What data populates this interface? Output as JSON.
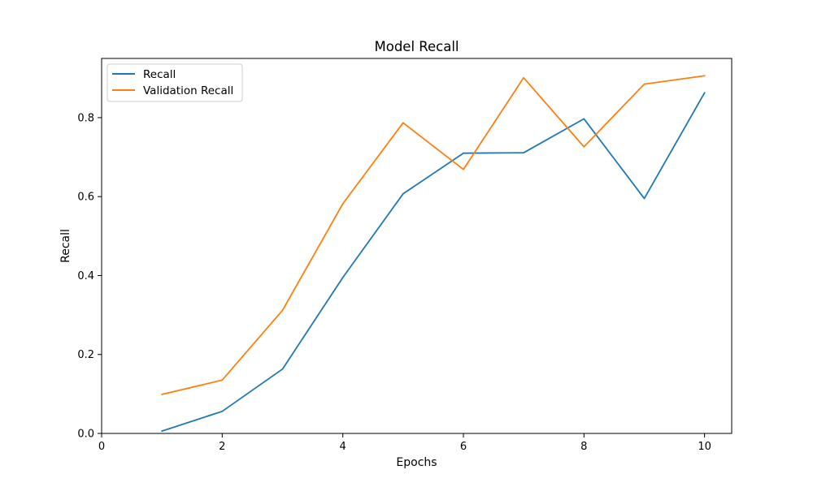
{
  "chart_data": {
    "type": "line",
    "title": "Model Recall",
    "xlabel": "Epochs",
    "ylabel": "Recall",
    "xlim": [
      0,
      10.45
    ],
    "ylim": [
      0,
      0.95
    ],
    "xticks": [
      0,
      2,
      4,
      6,
      8,
      10
    ],
    "xtick_labels": [
      "0",
      "2",
      "4",
      "6",
      "8",
      "10"
    ],
    "yticks": [
      0.0,
      0.2,
      0.4,
      0.6,
      0.8
    ],
    "ytick_labels": [
      "0.0",
      "0.2",
      "0.4",
      "0.6",
      "0.8"
    ],
    "grid": false,
    "legend_position": "upper-left",
    "x": [
      1,
      2,
      3,
      4,
      5,
      6,
      7,
      8,
      9,
      10
    ],
    "series": [
      {
        "name": "Recall",
        "color": "#1f77b4",
        "values": [
          0.006,
          0.056,
          0.163,
          0.395,
          0.607,
          0.71,
          0.711,
          0.797,
          0.595,
          0.863
        ]
      },
      {
        "name": "Validation Recall",
        "color": "#ff7f0e",
        "values": [
          0.099,
          0.135,
          0.312,
          0.582,
          0.787,
          0.669,
          0.901,
          0.726,
          0.885,
          0.906
        ]
      }
    ]
  }
}
